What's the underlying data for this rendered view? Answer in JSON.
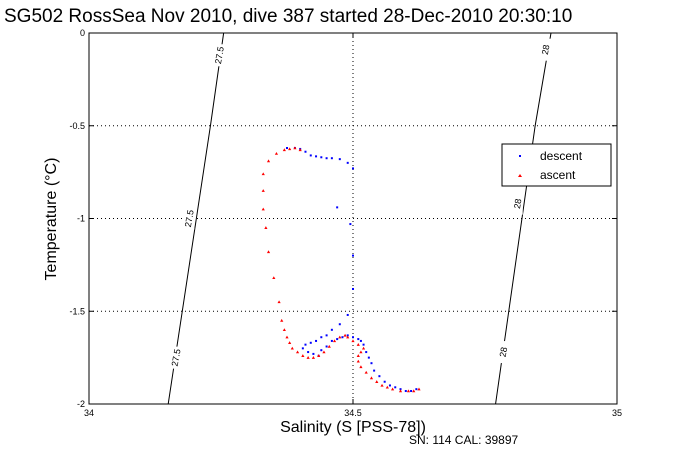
{
  "chart_data": {
    "type": "scatter",
    "title": "SG502 RossSea Nov 2010, dive 387 started 28-Dec-2010 20:30:10",
    "xlabel": "Salinity (S [PSS-78])",
    "ylabel": "Temperature (°C)",
    "xlim": [
      34,
      35
    ],
    "ylim": [
      -2,
      0
    ],
    "xticks": [
      "34",
      "34.5",
      "35"
    ],
    "yticks": [
      "-2",
      "-1.5",
      "-1",
      "-0.5",
      "0"
    ],
    "xtick_values": [
      34,
      34.5,
      35
    ],
    "ytick_values": [
      -2,
      -1.5,
      -1,
      -0.5,
      0
    ],
    "grid": true,
    "legend_position": "upper-right",
    "footer": "SN: 114  CAL: 39897",
    "isopycnals": [
      {
        "label": "27.5",
        "points": [
          [
            34.15,
            -2.0
          ],
          [
            34.23,
            -0.5
          ],
          [
            34.255,
            0.0
          ]
        ],
        "label_positions": [
          [
            34.165,
            -1.75
          ],
          [
            34.19,
            -1.0
          ],
          [
            34.247,
            -0.12
          ]
        ]
      },
      {
        "label": "28",
        "points": [
          [
            34.77,
            -2.0
          ],
          [
            34.845,
            -0.5
          ],
          [
            34.875,
            0.0
          ]
        ],
        "label_positions": [
          [
            34.785,
            -1.72
          ],
          [
            34.812,
            -0.92
          ],
          [
            34.865,
            -0.09
          ]
        ]
      }
    ],
    "series": [
      {
        "name": "descent",
        "color": "#0000ff",
        "marker": "dot",
        "points": [
          [
            34.375,
            -0.62
          ],
          [
            34.39,
            -0.62
          ],
          [
            34.4,
            -0.625
          ],
          [
            34.41,
            -0.64
          ],
          [
            34.42,
            -0.66
          ],
          [
            34.43,
            -0.665
          ],
          [
            34.44,
            -0.67
          ],
          [
            34.45,
            -0.675
          ],
          [
            34.46,
            -0.675
          ],
          [
            34.475,
            -0.68
          ],
          [
            34.49,
            -0.7
          ],
          [
            34.5,
            -0.73
          ],
          [
            34.47,
            -0.94
          ],
          [
            34.495,
            -1.03
          ],
          [
            34.5,
            -1.2
          ],
          [
            34.5,
            -1.38
          ],
          [
            34.49,
            -1.52
          ],
          [
            34.475,
            -1.57
          ],
          [
            34.46,
            -1.6
          ],
          [
            34.45,
            -1.63
          ],
          [
            34.44,
            -1.64
          ],
          [
            34.43,
            -1.66
          ],
          [
            34.42,
            -1.67
          ],
          [
            34.41,
            -1.68
          ],
          [
            34.405,
            -1.7
          ],
          [
            34.415,
            -1.72
          ],
          [
            34.425,
            -1.73
          ],
          [
            34.435,
            -1.74
          ],
          [
            34.44,
            -1.71
          ],
          [
            34.45,
            -1.69
          ],
          [
            34.46,
            -1.66
          ],
          [
            34.47,
            -1.65
          ],
          [
            34.48,
            -1.64
          ],
          [
            34.49,
            -1.63
          ],
          [
            34.5,
            -1.64
          ],
          [
            34.51,
            -1.65
          ],
          [
            34.515,
            -1.66
          ],
          [
            34.52,
            -1.68
          ],
          [
            34.525,
            -1.72
          ],
          [
            34.53,
            -1.75
          ],
          [
            34.535,
            -1.78
          ],
          [
            34.54,
            -1.82
          ],
          [
            34.55,
            -1.85
          ],
          [
            34.56,
            -1.88
          ],
          [
            34.57,
            -1.9
          ],
          [
            34.58,
            -1.91
          ],
          [
            34.59,
            -1.92
          ],
          [
            34.6,
            -1.93
          ],
          [
            34.61,
            -1.93
          ],
          [
            34.62,
            -1.92
          ]
        ]
      },
      {
        "name": "ascent",
        "color": "#ff0000",
        "marker": "triangle",
        "points": [
          [
            34.625,
            -1.92
          ],
          [
            34.615,
            -1.93
          ],
          [
            34.605,
            -1.93
          ],
          [
            34.59,
            -1.93
          ],
          [
            34.575,
            -1.92
          ],
          [
            34.565,
            -1.91
          ],
          [
            34.555,
            -1.9
          ],
          [
            34.545,
            -1.88
          ],
          [
            34.535,
            -1.86
          ],
          [
            34.525,
            -1.83
          ],
          [
            34.515,
            -1.8
          ],
          [
            34.51,
            -1.77
          ],
          [
            34.51,
            -1.74
          ],
          [
            34.515,
            -1.72
          ],
          [
            34.52,
            -1.7
          ],
          [
            34.51,
            -1.68
          ],
          [
            34.5,
            -1.66
          ],
          [
            34.49,
            -1.64
          ],
          [
            34.485,
            -1.63
          ],
          [
            34.475,
            -1.64
          ],
          [
            34.465,
            -1.66
          ],
          [
            34.455,
            -1.69
          ],
          [
            34.445,
            -1.72
          ],
          [
            34.435,
            -1.74
          ],
          [
            34.425,
            -1.75
          ],
          [
            34.415,
            -1.75
          ],
          [
            34.405,
            -1.74
          ],
          [
            34.395,
            -1.72
          ],
          [
            34.385,
            -1.7
          ],
          [
            34.38,
            -1.67
          ],
          [
            34.375,
            -1.64
          ],
          [
            34.37,
            -1.6
          ],
          [
            34.365,
            -1.55
          ],
          [
            34.36,
            -1.45
          ],
          [
            34.35,
            -1.32
          ],
          [
            34.34,
            -1.18
          ],
          [
            34.335,
            -1.05
          ],
          [
            34.33,
            -0.95
          ],
          [
            34.33,
            -0.85
          ],
          [
            34.33,
            -0.76
          ],
          [
            34.34,
            -0.69
          ],
          [
            34.355,
            -0.65
          ],
          [
            34.37,
            -0.63
          ],
          [
            34.38,
            -0.625
          ],
          [
            34.39,
            -0.62
          ],
          [
            34.4,
            -0.63
          ]
        ]
      }
    ]
  }
}
